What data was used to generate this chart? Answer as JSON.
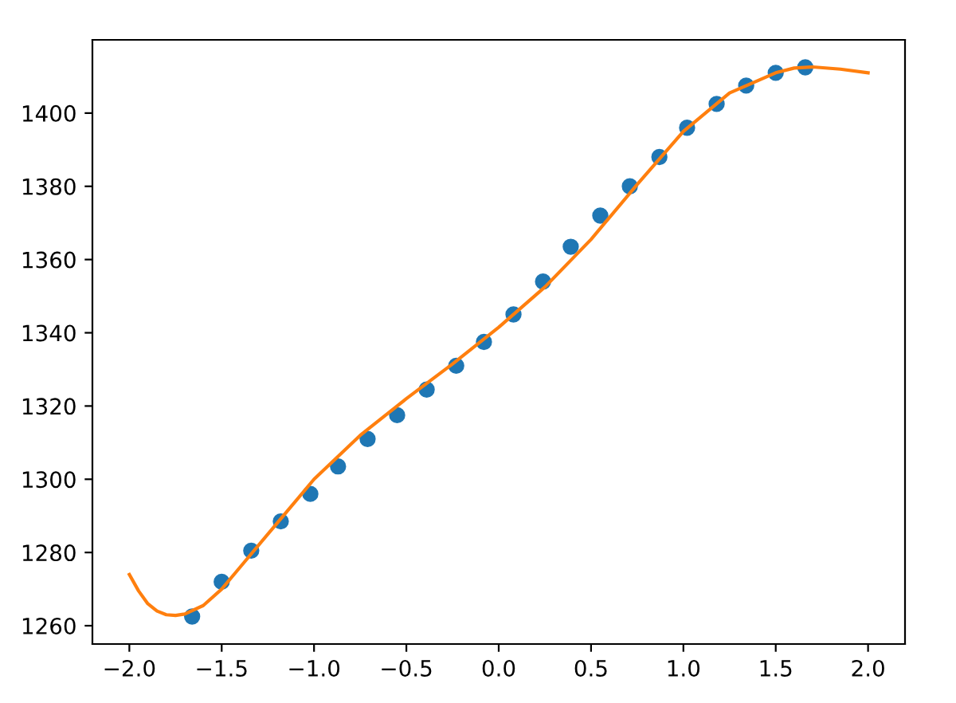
{
  "chart_data": {
    "type": "scatter",
    "xlim": [
      -2.2,
      2.2
    ],
    "ylim": [
      1255,
      1420
    ],
    "xticks": [
      {
        "value": -2.0,
        "label": "−2.0"
      },
      {
        "value": -1.5,
        "label": "−1.5"
      },
      {
        "value": -1.0,
        "label": "−1.0"
      },
      {
        "value": -0.5,
        "label": "−0.5"
      },
      {
        "value": 0.0,
        "label": "0.0"
      },
      {
        "value": 0.5,
        "label": "0.5"
      },
      {
        "value": 1.0,
        "label": "1.0"
      },
      {
        "value": 1.5,
        "label": "1.5"
      },
      {
        "value": 2.0,
        "label": "2.0"
      }
    ],
    "yticks": [
      1260,
      1280,
      1300,
      1320,
      1340,
      1360,
      1380,
      1400
    ],
    "grid": false,
    "legend": false,
    "series": [
      {
        "color": "#1f77b4",
        "marker": "circle",
        "x": [
          -1.66,
          -1.5,
          -1.34,
          -1.18,
          -1.02,
          -0.87,
          -0.71,
          -0.55,
          -0.39,
          -0.23,
          -0.08,
          0.08,
          0.24,
          0.39,
          0.55,
          0.71,
          0.87,
          1.02,
          1.18,
          1.34,
          1.5,
          1.66
        ],
        "values": [
          1262.5,
          1272,
          1280.5,
          1288.5,
          1296,
          1303.5,
          1311,
          1317.5,
          1324.5,
          1331,
          1337.5,
          1345,
          1354,
          1363.5,
          1372,
          1380,
          1388,
          1396,
          1402.5,
          1407.5,
          1411,
          1412.5
        ]
      },
      {
        "type": "line",
        "color": "#ff7f0e",
        "line_style": "solid",
        "x": [
          -2.0,
          -1.95,
          -1.9,
          -1.85,
          -1.8,
          -1.75,
          -1.7,
          -1.6,
          -1.5,
          -1.4,
          -1.25,
          -1.1,
          -1.0,
          -0.75,
          -0.5,
          -0.25,
          0.0,
          0.25,
          0.5,
          0.75,
          1.0,
          1.25,
          1.5,
          1.6,
          1.7,
          1.85,
          2.0
        ],
        "values": [
          1274,
          1269.5,
          1266,
          1264,
          1263,
          1262.8,
          1263.2,
          1265.5,
          1270,
          1276,
          1285,
          1294,
          1300,
          1312,
          1322,
          1331.5,
          1341.5,
          1352.5,
          1365.5,
          1380.5,
          1395,
          1405.5,
          1411,
          1412.3,
          1412.6,
          1412,
          1411
        ]
      }
    ]
  }
}
